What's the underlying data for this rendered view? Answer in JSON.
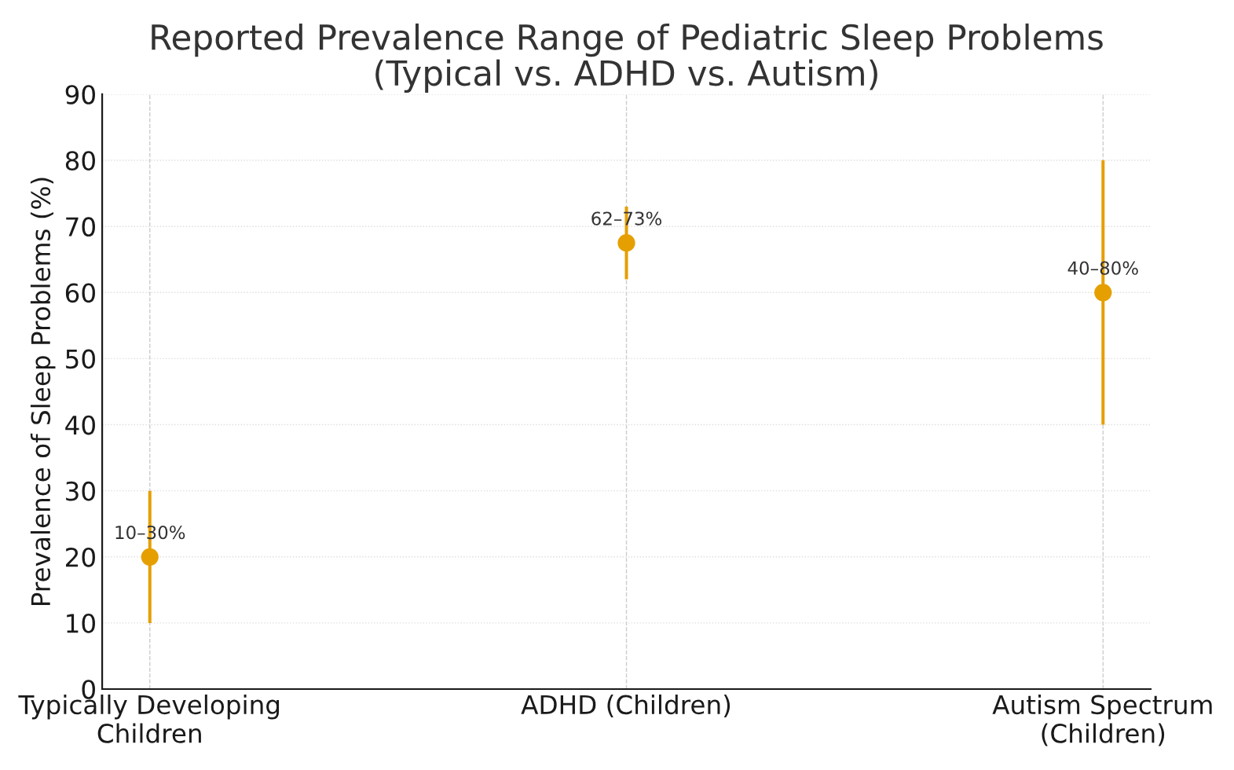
{
  "chart_data": {
    "type": "scatter",
    "title": "Reported Prevalence Range of Pediatric Sleep Problems\n(Typical vs. ADHD vs. Autism)",
    "ylabel": "Prevalence of Sleep Problems (%)",
    "categories": [
      "Typically Developing\nChildren",
      "ADHD (Children)",
      "Autism Spectrum\n(Children)"
    ],
    "series": [
      {
        "color": "#e69f00",
        "values": [
          20,
          67.5,
          60
        ],
        "errors": [
          [
            10,
            30
          ],
          [
            62,
            73
          ],
          [
            40,
            80
          ]
        ],
        "value_labels": [
          "10–30%",
          "62–73%",
          "40–80%"
        ]
      }
    ],
    "ylim": [
      0,
      90
    ],
    "yticks": [
      0,
      10,
      20,
      30,
      40,
      50,
      60,
      70,
      80,
      90
    ],
    "grid": true,
    "marker": "circle"
  }
}
